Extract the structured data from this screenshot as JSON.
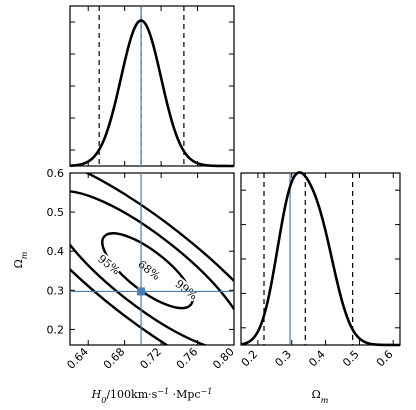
{
  "chart_data": [
    {
      "panel": "top",
      "type": "line",
      "xlim": [
        0.62,
        0.8
      ],
      "ylim": [
        0,
        1.1
      ],
      "curve": {
        "mean": 0.698,
        "sigma": 0.022
      },
      "dashed_x": [
        0.652,
        0.698,
        0.745
      ],
      "truth_x": 0.698,
      "xticks": [
        0.64,
        0.68,
        0.72,
        0.76,
        0.8
      ],
      "tick_labels": [],
      "xlabel": "",
      "ylabel": ""
    },
    {
      "panel": "joint",
      "type": "contour",
      "xlim": [
        0.62,
        0.8
      ],
      "ylim": [
        0.16,
        0.6
      ],
      "xticks": [
        0.64,
        0.68,
        0.72,
        0.76,
        0.8
      ],
      "xtick_labels": [
        "0.64",
        "0.68",
        "0.72",
        "0.76",
        "0.80"
      ],
      "yticks": [
        0.2,
        0.3,
        0.4,
        0.5,
        0.6
      ],
      "ytick_labels": [
        "0.2",
        "0.3",
        "0.4",
        "0.5",
        "0.6"
      ],
      "center": [
        0.705,
        0.35
      ],
      "contours": [
        {
          "level_label": "68%",
          "label_at": [
            0.707,
            0.352
          ],
          "major": 0.05,
          "minor": 0.018
        },
        {
          "level_label": "95%",
          "label_at": [
            0.663,
            0.366
          ],
          "major": 0.11,
          "minor": 0.032
        },
        {
          "level_label": "99%",
          "label_at": [
            0.748,
            0.302
          ],
          "major": 0.165,
          "minor": 0.045
        }
      ],
      "marker": [
        0.698,
        0.297
      ],
      "truth_x": 0.698,
      "truth_y": 0.297,
      "xlabel": "H0/100km·s−1 ·Mpc−1",
      "ylabel": "Ωm"
    },
    {
      "panel": "right",
      "type": "line",
      "xlim": [
        0.15,
        0.62
      ],
      "ylim": [
        0,
        1.1
      ],
      "components": [
        {
          "mean": 0.295,
          "sigma": 0.045,
          "amp": 0.78
        },
        {
          "mean": 0.375,
          "sigma": 0.052,
          "amp": 0.76
        }
      ],
      "dashed_x": [
        0.218,
        0.34,
        0.48
      ],
      "truth_x": 0.295,
      "xticks": [
        0.2,
        0.3,
        0.4,
        0.5,
        0.6
      ],
      "xtick_labels": [
        "0.2",
        "0.3",
        "0.4",
        "0.5",
        "0.6"
      ],
      "xlabel": "Ωm",
      "ylabel": ""
    }
  ]
}
